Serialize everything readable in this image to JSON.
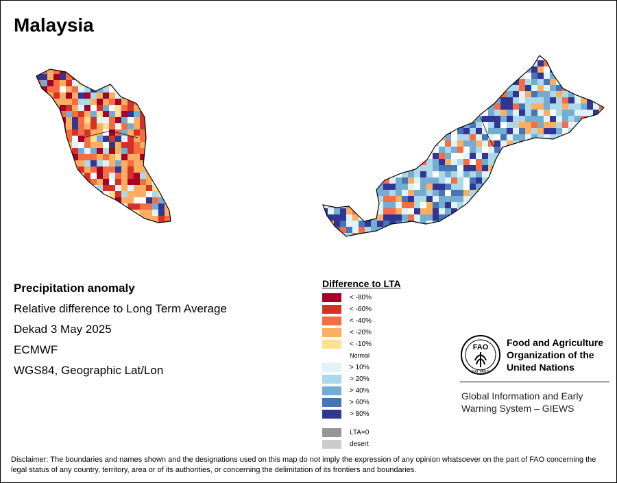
{
  "title": "Malaysia",
  "info": {
    "heading": "Precipitation anomaly",
    "subtitle": "Relative difference to Long Term Average",
    "period": "Dekad 3 May 2025",
    "source": "ECMWF",
    "projection": "WGS84, Geographic Lat/Lon"
  },
  "legend": {
    "title": "Difference to LTA",
    "dry": [
      {
        "label": "< -80%",
        "color": "#a50026"
      },
      {
        "label": "< -60%",
        "color": "#d73027"
      },
      {
        "label": "< -40%",
        "color": "#f46d43"
      },
      {
        "label": "< -20%",
        "color": "#fdae61"
      },
      {
        "label": "< -10%",
        "color": "#fee090"
      }
    ],
    "normal": {
      "label": "Normal",
      "color": "#ffffff"
    },
    "wet": [
      {
        "label": "> 10%",
        "color": "#e0f3f8"
      },
      {
        "label": "> 20%",
        "color": "#abd9e9"
      },
      {
        "label": "> 40%",
        "color": "#74add1"
      },
      {
        "label": "> 60%",
        "color": "#4575b4"
      },
      {
        "label": "> 80%",
        "color": "#313695"
      }
    ],
    "other": [
      {
        "label": "LTA=0",
        "color": "#969696"
      },
      {
        "label": "desert",
        "color": "#cccccc"
      }
    ]
  },
  "org": {
    "emblem_text": "FAO",
    "emblem_motto": "FIAT PANIS",
    "line1": "Food and Agriculture",
    "line2": "Organization of the",
    "line3": "United Nations",
    "program_line1": "Global Information and Early",
    "program_line2": "Warning System – GIEWS"
  },
  "disclaimer": "Disclaimer: The boundaries and names shown and the designations used on this map do not imply the expression of any opinion whatsoever on the part of FAO concerning the legal status of any country, territory, area or of its authorities, or concerning the delimitation of its frontiers and boundaries.",
  "map_regions": {
    "peninsular": {
      "levels": [
        "-20",
        "-20",
        "-20",
        "-40",
        "-40",
        "-60",
        "-60",
        "-80",
        "-40",
        "-20",
        "-10",
        "normal",
        "10",
        "20",
        "40",
        "80"
      ]
    },
    "borneo": {
      "levels": [
        "80",
        "80",
        "60",
        "40",
        "20",
        "10",
        "normal",
        "-20",
        "-40",
        "40",
        "20",
        "10"
      ]
    }
  }
}
